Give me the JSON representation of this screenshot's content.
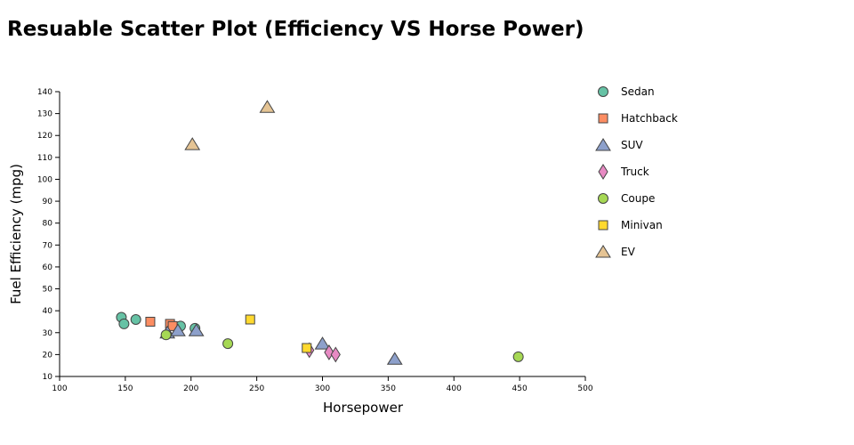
{
  "chart_data": {
    "type": "scatter",
    "title": "Resuable Scatter Plot (Efficiency VS Horse Power)",
    "xlabel": "Horsepower",
    "ylabel": "Fuel Efficiency (mpg)",
    "xlim": [
      100,
      500
    ],
    "ylim": [
      10,
      140
    ],
    "xticks": [
      100,
      150,
      200,
      250,
      300,
      350,
      400,
      450,
      500
    ],
    "yticks": [
      10,
      20,
      30,
      40,
      50,
      60,
      70,
      80,
      90,
      100,
      110,
      120,
      130,
      140
    ],
    "grid": false,
    "legend_position": "right",
    "series": [
      {
        "name": "Sedan",
        "marker": "circle",
        "color": "#66c2a5",
        "points": [
          [
            147,
            37
          ],
          [
            149,
            34
          ],
          [
            158,
            36
          ],
          [
            192,
            33
          ],
          [
            203,
            32
          ]
        ]
      },
      {
        "name": "Hatchback",
        "marker": "square",
        "color": "#fc8d62",
        "points": [
          [
            169,
            35
          ],
          [
            184,
            34
          ],
          [
            186,
            33
          ]
        ]
      },
      {
        "name": "SUV",
        "marker": "triangle",
        "color": "#8da0cb",
        "points": [
          [
            182,
            30
          ],
          [
            190,
            31
          ],
          [
            204,
            31
          ],
          [
            300,
            25
          ],
          [
            355,
            18
          ]
        ]
      },
      {
        "name": "Truck",
        "marker": "diamond",
        "color": "#e78ac3",
        "points": [
          [
            290,
            22
          ],
          [
            305,
            21
          ],
          [
            310,
            20
          ]
        ]
      },
      {
        "name": "Coupe",
        "marker": "circle",
        "color": "#a6d854",
        "points": [
          [
            181,
            29
          ],
          [
            228,
            25
          ],
          [
            449,
            19
          ]
        ]
      },
      {
        "name": "Minivan",
        "marker": "square",
        "color": "#ffd92f",
        "points": [
          [
            245,
            36
          ],
          [
            288,
            23
          ]
        ]
      },
      {
        "name": "EV",
        "marker": "triangle",
        "color": "#e5c494",
        "points": [
          [
            201,
            116
          ],
          [
            258,
            133
          ]
        ]
      }
    ]
  }
}
